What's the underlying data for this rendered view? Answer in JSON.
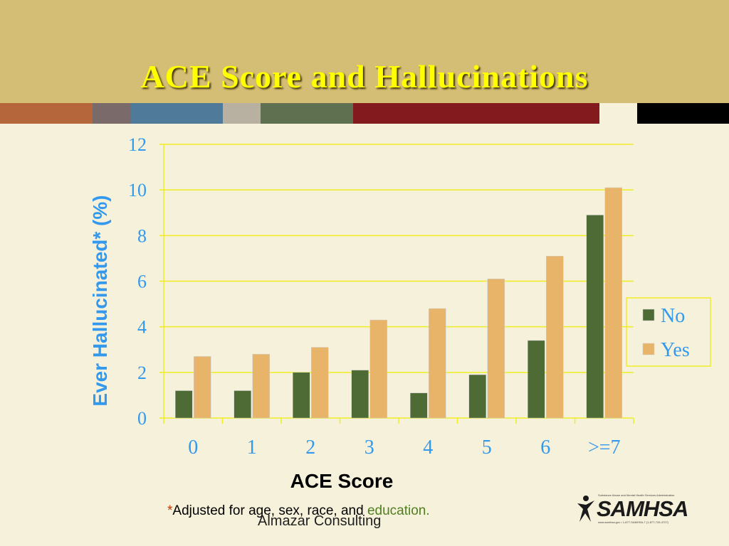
{
  "slide": {
    "title": "ACE Score and Hallucinations",
    "stripe_colors": [
      "#b5663a",
      "#7a6a6a",
      "#4f7a9a",
      "#b8b0a0",
      "#5f7050",
      "#821a1e",
      "#f6f1da",
      "#000000"
    ]
  },
  "chart_data": {
    "type": "bar",
    "categories": [
      "0",
      "1",
      "2",
      "3",
      "4",
      "5",
      "6",
      ">=7"
    ],
    "series": [
      {
        "name": "No",
        "color": "#4e6a35",
        "values": [
          1.2,
          1.2,
          2.0,
          2.1,
          1.1,
          1.9,
          3.4,
          8.9
        ]
      },
      {
        "name": "Yes",
        "color": "#e8b46a",
        "values": [
          2.7,
          2.8,
          3.1,
          4.3,
          4.8,
          6.1,
          7.1,
          10.1
        ]
      }
    ],
    "xlabel": "ACE Score",
    "ylabel": "Ever Hallucinated* (%)",
    "ylim": [
      0,
      12
    ],
    "yticks": [
      0,
      2,
      4,
      6,
      8,
      10,
      12
    ],
    "grid": true,
    "legend": "right",
    "axis_text_color": "#3399ee",
    "grid_color": "#eeee22"
  },
  "footnote": {
    "star": "*",
    "text": "Adjusted for age, sex, race, and ",
    "highlight": "education."
  },
  "credit": "Almazar Consulting",
  "logo": {
    "name": "SAMHSA",
    "tagline": "Substance Abuse and Mental Health Services Administration",
    "contact": "www.samhsa.gov • 1-877-SAMHSA-7 (1-877-726-4727)"
  }
}
